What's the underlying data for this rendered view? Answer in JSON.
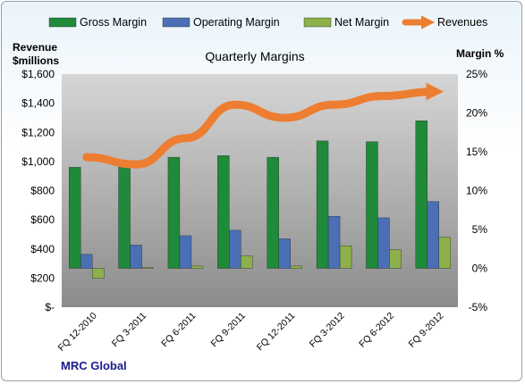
{
  "chart_data": {
    "type": "bar",
    "title": "Quarterly Margins",
    "footer": "MRC Global",
    "left_axis_title": [
      "Revenue",
      "$millions"
    ],
    "right_axis_title": "Margin %",
    "categories": [
      "FQ 12-2010",
      "FQ 3-2011",
      "FQ 6-2011",
      "FQ 9-2011",
      "FQ 12-2011",
      "FQ 3-2012",
      "FQ 6-2012",
      "FQ 9-2012"
    ],
    "left_ticks": [
      "$-",
      "$200",
      "$400",
      "$600",
      "$800",
      "$1,000",
      "$1,200",
      "$1,400",
      "$1,600"
    ],
    "right_ticks": [
      "-5%",
      "0%",
      "5%",
      "10%",
      "15%",
      "20%",
      "25%"
    ],
    "left_ylim": [
      0,
      1600
    ],
    "right_ylim": [
      -5,
      25
    ],
    "series": [
      {
        "name": "Gross Margin",
        "axis": "right",
        "color": "#1e8a3a",
        "values": [
          13.0,
          13.5,
          14.3,
          14.5,
          14.3,
          16.4,
          16.3,
          19.0
        ]
      },
      {
        "name": "Operating Margin",
        "axis": "right",
        "color": "#4a6fb5",
        "values": [
          1.8,
          3.0,
          4.2,
          4.9,
          3.8,
          6.7,
          6.5,
          8.6
        ]
      },
      {
        "name": "Net Margin",
        "axis": "right",
        "color": "#8db04a",
        "values": [
          -1.3,
          0.1,
          0.3,
          1.6,
          0.3,
          2.9,
          2.4,
          4.0
        ]
      },
      {
        "name": "Revenues",
        "axis": "left",
        "color": "#ed7d31",
        "values": [
          1030,
          980,
          1160,
          1390,
          1300,
          1390,
          1450,
          1480
        ]
      }
    ],
    "legend_position": "top",
    "grid": false
  }
}
